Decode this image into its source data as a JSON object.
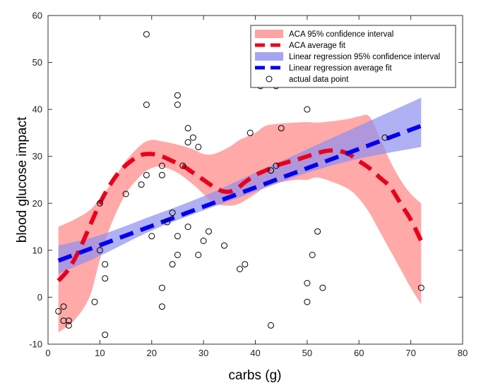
{
  "chart_data": {
    "type": "scatter",
    "title": "",
    "xlabel": "carbs (g)",
    "ylabel": "blood glucose impact",
    "xlim": [
      0,
      80
    ],
    "ylim": [
      -10,
      60
    ],
    "xticks": [
      0,
      10,
      20,
      30,
      40,
      50,
      60,
      70,
      80
    ],
    "yticks": [
      -10,
      0,
      10,
      20,
      30,
      40,
      50,
      60
    ],
    "grid": false,
    "legend_position": "top-right",
    "colors": {
      "aca_ci": "#ff9a9a",
      "aca_fit": "#e8001c",
      "lr_ci": "#8f8ff0",
      "lr_fit": "#0000ee",
      "points": "#000000"
    },
    "legend": [
      {
        "key": "aca_ci",
        "label": "ACA 95% confidence interval"
      },
      {
        "key": "aca_fit",
        "label": "ACA average fit"
      },
      {
        "key": "lr_ci",
        "label": "Linear regression 95% confidence interval"
      },
      {
        "key": "lr_fit",
        "label": "Linear regression average fit"
      },
      {
        "key": "points",
        "label": "actual data point"
      }
    ],
    "series": [
      {
        "name": "ACA 95% confidence interval",
        "key": "aca_ci",
        "kind": "band",
        "x": [
          2,
          5,
          8,
          10,
          12,
          15,
          18,
          20,
          22,
          25,
          28,
          30,
          32,
          35,
          37,
          40,
          42,
          45,
          48,
          50,
          52,
          55,
          58,
          60,
          62,
          64,
          66,
          68,
          70,
          72
        ],
        "upper": [
          15,
          16.5,
          18.5,
          21,
          24,
          29,
          32.5,
          33.5,
          33.2,
          32.5,
          31.5,
          30.5,
          30.5,
          32,
          33.5,
          35,
          36.5,
          37,
          37.2,
          37.3,
          37.2,
          37.5,
          38,
          38.5,
          38.5,
          34,
          29,
          25,
          22,
          20
        ],
        "lower": [
          -7.5,
          -5,
          0,
          8,
          15,
          22,
          26,
          27.5,
          27.8,
          26.5,
          24,
          22,
          20,
          19.5,
          20,
          22,
          23.5,
          24.5,
          25,
          25,
          25.5,
          24.5,
          23,
          21,
          18,
          14,
          10,
          6,
          2,
          -1.5
        ]
      },
      {
        "name": "ACA average fit",
        "key": "aca_fit",
        "kind": "line",
        "x": [
          2,
          4,
          6,
          8,
          10,
          12,
          14,
          16,
          18,
          20,
          22,
          24,
          26,
          28,
          30,
          32,
          34,
          36,
          38,
          40,
          42,
          44,
          46,
          48,
          50,
          52,
          54,
          56,
          58,
          60,
          62,
          64,
          66,
          68,
          70,
          72
        ],
        "y": [
          3.5,
          6,
          10,
          15,
          20,
          24,
          27,
          29,
          30.3,
          30.5,
          30,
          29,
          28,
          26.5,
          25,
          23.5,
          22.5,
          22.8,
          24.5,
          26,
          27,
          28,
          28.7,
          29.3,
          30,
          30.7,
          31.2,
          31.2,
          30.5,
          29,
          27.5,
          25.5,
          23.5,
          20,
          16.5,
          12
        ]
      },
      {
        "name": "Linear regression 95% confidence interval",
        "key": "lr_ci",
        "kind": "band",
        "x": [
          2,
          10,
          20,
          30,
          40,
          50,
          60,
          72
        ],
        "upper": [
          11,
          13.2,
          17.3,
          21.5,
          26.5,
          31.5,
          36.5,
          42.5
        ],
        "lower": [
          5,
          8.8,
          14.2,
          18.5,
          22.5,
          26.5,
          29.5,
          32
        ]
      },
      {
        "name": "Linear regression average fit",
        "key": "lr_fit",
        "kind": "line",
        "x": [
          2,
          72
        ],
        "y": [
          7.8,
          36.5
        ]
      },
      {
        "name": "actual data point",
        "key": "points",
        "kind": "scatter",
        "points": [
          [
            2,
            -3
          ],
          [
            3,
            -2
          ],
          [
            3,
            -5
          ],
          [
            4,
            -5
          ],
          [
            4,
            -6
          ],
          [
            9,
            -1
          ],
          [
            10,
            10
          ],
          [
            10,
            20
          ],
          [
            11,
            7
          ],
          [
            11,
            4
          ],
          [
            11,
            -8
          ],
          [
            15,
            22
          ],
          [
            18,
            24
          ],
          [
            19,
            26
          ],
          [
            19,
            41
          ],
          [
            19,
            56
          ],
          [
            20,
            13
          ],
          [
            22,
            2
          ],
          [
            22,
            -2
          ],
          [
            22,
            26
          ],
          [
            22,
            28
          ],
          [
            23,
            16
          ],
          [
            24,
            18
          ],
          [
            24,
            7
          ],
          [
            25,
            9
          ],
          [
            25,
            13
          ],
          [
            25,
            41
          ],
          [
            25,
            43
          ],
          [
            26,
            28
          ],
          [
            27,
            15
          ],
          [
            27,
            33
          ],
          [
            27,
            36
          ],
          [
            28,
            34
          ],
          [
            29,
            32
          ],
          [
            29,
            9
          ],
          [
            30,
            12
          ],
          [
            31,
            14
          ],
          [
            34,
            11
          ],
          [
            37,
            6
          ],
          [
            38,
            7
          ],
          [
            39,
            35
          ],
          [
            41,
            45
          ],
          [
            43,
            27
          ],
          [
            43,
            -6
          ],
          [
            44,
            28
          ],
          [
            44,
            45
          ],
          [
            45,
            36
          ],
          [
            50,
            40
          ],
          [
            50,
            3
          ],
          [
            50,
            -1
          ],
          [
            51,
            9
          ],
          [
            52,
            14
          ],
          [
            53,
            2
          ],
          [
            65,
            34
          ],
          [
            72,
            2
          ]
        ]
      }
    ]
  }
}
